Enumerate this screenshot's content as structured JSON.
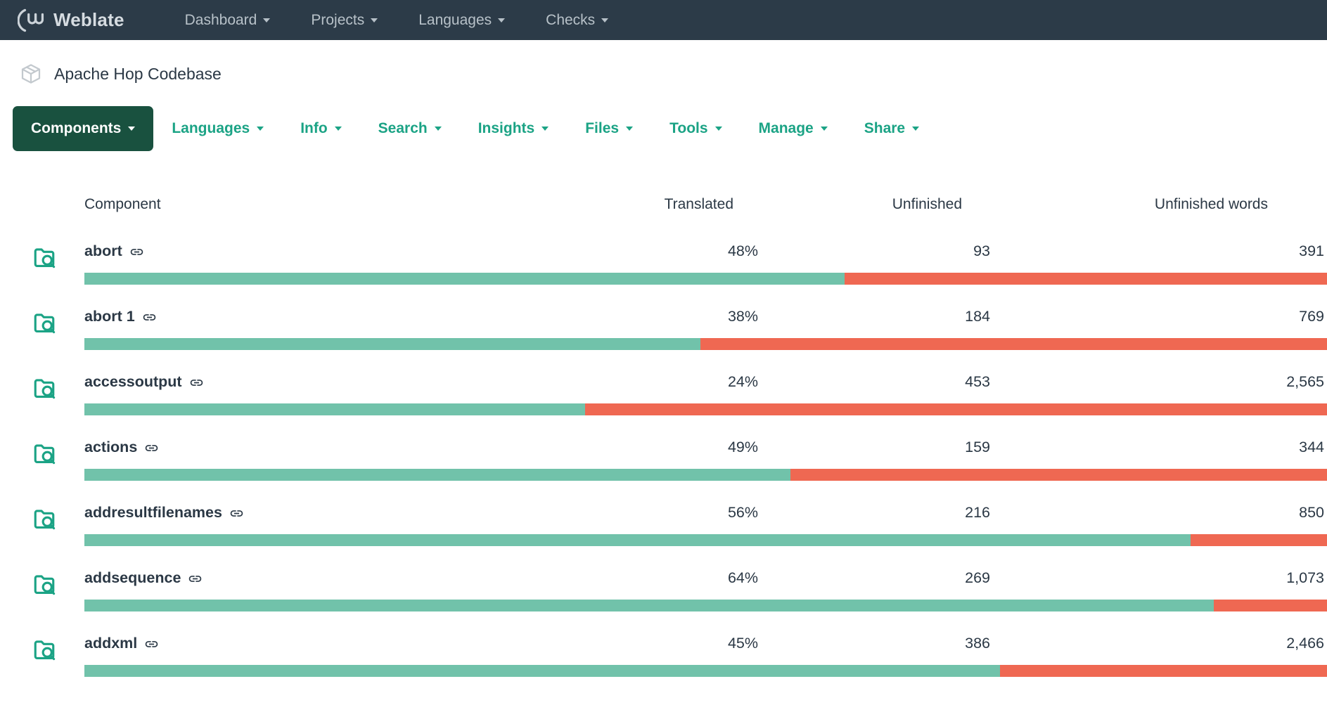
{
  "colors": {
    "navbar": "#2c3b48",
    "accent": "#1ba385",
    "tab_active_bg": "#19513f",
    "bar_green": "#71c2aa",
    "bar_red": "#ef6852",
    "text": "#2b3845"
  },
  "navbar": {
    "brand": "Weblate",
    "items": [
      {
        "label": "Dashboard",
        "caret": false
      },
      {
        "label": "Projects",
        "caret": true
      },
      {
        "label": "Languages",
        "caret": true
      },
      {
        "label": "Checks",
        "caret": true
      }
    ]
  },
  "breadcrumb": {
    "project": "Apache Hop Codebase"
  },
  "tabs": [
    {
      "label": "Components",
      "active": true,
      "caret": false
    },
    {
      "label": "Languages",
      "active": false,
      "caret": false
    },
    {
      "label": "Info",
      "active": false,
      "caret": false
    },
    {
      "label": "Search",
      "active": false,
      "caret": false
    },
    {
      "label": "Insights",
      "active": false,
      "caret": true
    },
    {
      "label": "Files",
      "active": false,
      "caret": true
    },
    {
      "label": "Tools",
      "active": false,
      "caret": true
    },
    {
      "label": "Manage",
      "active": false,
      "caret": true
    },
    {
      "label": "Share",
      "active": false,
      "caret": true
    }
  ],
  "table": {
    "columns": [
      "Component",
      "Translated",
      "Unfinished",
      "Unfinished words"
    ],
    "rows": [
      {
        "name": "abort",
        "translated": "48%",
        "unfinished": "93",
        "unfinished_words": "391",
        "bar_green_pct": 61.2
      },
      {
        "name": "abort 1",
        "translated": "38%",
        "unfinished": "184",
        "unfinished_words": "769",
        "bar_green_pct": 49.6
      },
      {
        "name": "accessoutput",
        "translated": "24%",
        "unfinished": "453",
        "unfinished_words": "2,565",
        "bar_green_pct": 40.3
      },
      {
        "name": "actions",
        "translated": "49%",
        "unfinished": "159",
        "unfinished_words": "344",
        "bar_green_pct": 56.8
      },
      {
        "name": "addresultfilenames",
        "translated": "56%",
        "unfinished": "216",
        "unfinished_words": "850",
        "bar_green_pct": 89.0
      },
      {
        "name": "addsequence",
        "translated": "64%",
        "unfinished": "269",
        "unfinished_words": "1,073",
        "bar_green_pct": 90.9
      },
      {
        "name": "addxml",
        "translated": "45%",
        "unfinished": "386",
        "unfinished_words": "2,466",
        "bar_green_pct": 73.7
      }
    ]
  }
}
